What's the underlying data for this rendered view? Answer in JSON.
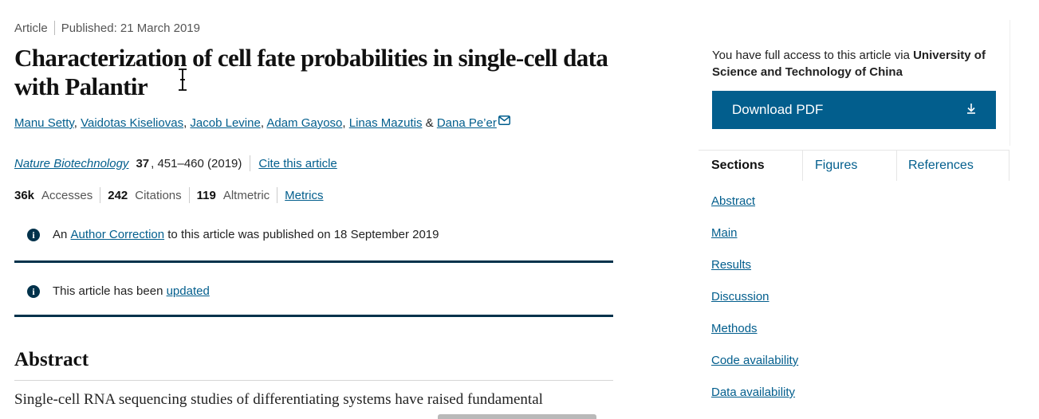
{
  "meta": {
    "type": "Article",
    "published": "Published: 21 March 2019"
  },
  "title": "Characterization of cell fate probabilities in single-cell data with Palantir",
  "authors": {
    "list": [
      "Manu Setty",
      "Vaidotas Kiseliovas",
      "Jacob Levine",
      "Adam Gayoso",
      "Linas Mazutis",
      "Dana Pe’er"
    ],
    "comma": ",",
    "amp": "&"
  },
  "citation": {
    "journal": "Nature Biotechnology",
    "volume": "37",
    "pages": ", 451–460 (2019)",
    "cite_link": "Cite this article"
  },
  "metrics": {
    "accesses_value": "36k",
    "accesses_label": "Accesses",
    "citations_value": "242",
    "citations_label": "Citations",
    "altmetric_value": "119",
    "altmetric_label": "Altmetric",
    "metrics_link": "Metrics"
  },
  "notices": {
    "correction": {
      "prefix": "An",
      "link": "Author Correction",
      "suffix": "to this article was published on 18 September 2019"
    },
    "updated": {
      "prefix": "This article has been",
      "link": "updated"
    }
  },
  "abstract": {
    "heading": "Abstract",
    "first_line": "Single-cell RNA sequencing studies of differentiating systems have raised fundamental"
  },
  "sidebar": {
    "access_prefix": "You have full access to this article via",
    "institution": "University of Science and Technology of China",
    "download_label": "Download PDF",
    "download_icon": "download-icon",
    "tabs": [
      {
        "label": "Sections",
        "active": true
      },
      {
        "label": "Figures",
        "active": false
      },
      {
        "label": "References",
        "active": false
      }
    ],
    "sections": [
      "Abstract",
      "Main",
      "Results",
      "Discussion",
      "Methods",
      "Code availability",
      "Data availability"
    ]
  },
  "colors": {
    "link": "#025e8d",
    "button": "#025e8d",
    "notice_rule": "#01324b"
  }
}
